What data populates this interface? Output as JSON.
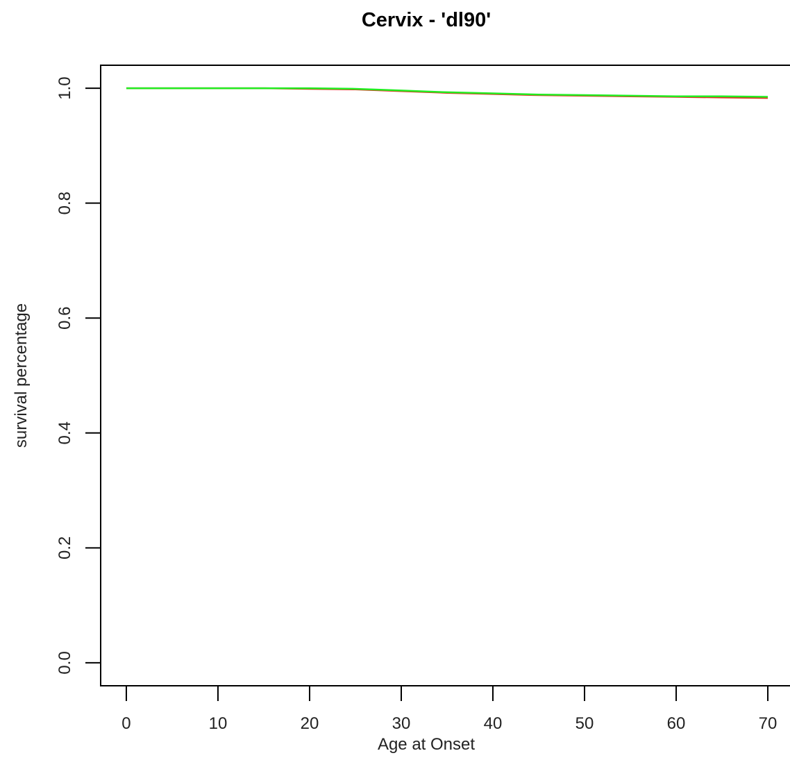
{
  "chart_data": {
    "type": "line",
    "title": "Cervix - 'dl90'",
    "x_label": "Age at Onset",
    "y_label": "survival percentage",
    "x": [
      0,
      5,
      10,
      15,
      20,
      25,
      30,
      35,
      40,
      45,
      50,
      55,
      60,
      65,
      70
    ],
    "series": [
      {
        "color": "#e0301e",
        "values": [
          1,
          1,
          1,
          1,
          0.999,
          0.998,
          0.995,
          0.992,
          0.99,
          0.988,
          0.987,
          0.986,
          0.985,
          0.984,
          0.983
        ]
      },
      {
        "color": "#22ee22",
        "values": [
          1,
          1,
          1,
          1,
          1,
          0.999,
          0.996,
          0.993,
          0.991,
          0.989,
          0.988,
          0.987,
          0.986,
          0.986,
          0.985
        ]
      }
    ],
    "xlim": [
      -2.8,
      72.8
    ],
    "ylim": [
      -0.04,
      1.04
    ],
    "xticks": [
      0,
      10,
      20,
      30,
      40,
      50,
      60,
      70
    ],
    "yticks": [
      {
        "value": 0,
        "label": "0.0"
      },
      0.2,
      0.4,
      0.6,
      0.8,
      {
        "value": 1,
        "label": "1.0"
      }
    ],
    "grid": false
  }
}
